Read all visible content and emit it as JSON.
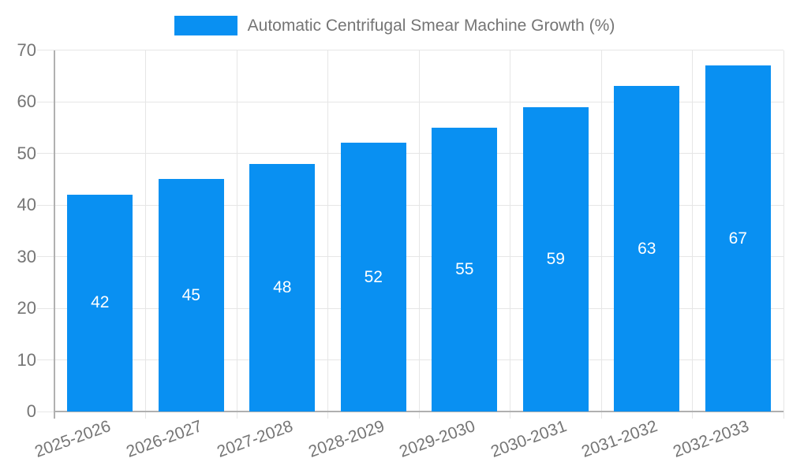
{
  "chart_data": {
    "type": "bar",
    "title": "Automatic Centrifugal Smear Machine Growth (%)",
    "categories": [
      "2025-2026",
      "2026-2027",
      "2027-2028",
      "2028-2029",
      "2029-2030",
      "2030-2031",
      "2031-2032",
      "2032-2033"
    ],
    "values": [
      42,
      45,
      48,
      52,
      55,
      59,
      63,
      67
    ],
    "xlabel": "",
    "ylabel": "",
    "ylim": [
      0,
      70
    ],
    "ytick_step": 10,
    "yticks": [
      0,
      10,
      20,
      30,
      40,
      50,
      60,
      70
    ],
    "grid": true,
    "legend_position": "top",
    "value_labels_shown": true,
    "value_label_position": "center-of-bar",
    "x_label_rotation_deg": -20,
    "colors": {
      "bar": "#0990f2",
      "grid": "#e6e6e6",
      "axis": "#b0b0b0",
      "tick_text": "#757575",
      "value_label": "#ffffff",
      "background": "#ffffff"
    }
  }
}
